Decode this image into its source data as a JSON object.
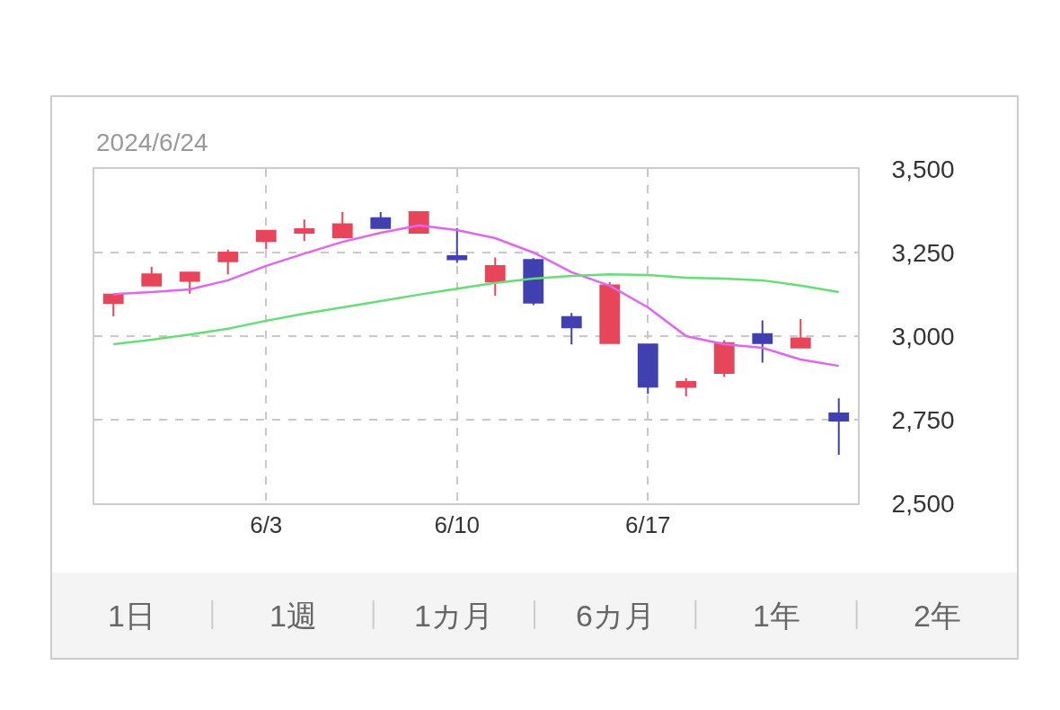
{
  "chart_data": {
    "type": "candlestick",
    "title": "2024/6/24",
    "categories": [
      null,
      null,
      null,
      null,
      "6/3",
      null,
      null,
      null,
      null,
      "6/10",
      null,
      null,
      null,
      null,
      "6/17",
      null,
      null,
      null,
      null,
      null
    ],
    "ohlc": [
      [
        3099,
        3124,
        3059,
        3124
      ],
      [
        3151,
        3207,
        3151,
        3185
      ],
      [
        3165,
        3190,
        3127,
        3190
      ],
      [
        3224,
        3259,
        3185,
        3250
      ],
      [
        3284,
        3315,
        3260,
        3315
      ],
      [
        3309,
        3349,
        3284,
        3320
      ],
      [
        3296,
        3371,
        3296,
        3335
      ],
      [
        3353,
        3371,
        3323,
        3323
      ],
      [
        3309,
        3371,
        3309,
        3371
      ],
      [
        3239,
        3323,
        3219,
        3230
      ],
      [
        3163,
        3235,
        3121,
        3210
      ],
      [
        3228,
        3233,
        3093,
        3100
      ],
      [
        3057,
        3069,
        2975,
        3026
      ],
      [
        2979,
        3161,
        2979,
        3152
      ],
      [
        2975,
        2975,
        2827,
        2849
      ],
      [
        2848,
        2874,
        2820,
        2863
      ],
      [
        2890,
        2988,
        2878,
        2979
      ],
      [
        3006,
        3047,
        2921,
        2979
      ],
      [
        2966,
        3051,
        2966,
        2993
      ],
      [
        2769,
        2814,
        2645,
        2747
      ]
    ],
    "colors": [
      "#e8455a",
      "#e8455a",
      "#e8455a",
      "#e8455a",
      "#e8455a",
      "#e8455a",
      "#e8455a",
      "#4040b0",
      "#e8455a",
      "#4040b0",
      "#e8455a",
      "#4040b0",
      "#4040b0",
      "#e8455a",
      "#4040b0",
      "#e8455a",
      "#e8455a",
      "#4040b0",
      "#e8455a",
      "#4040b0"
    ],
    "series": [
      {
        "type": "line",
        "color": "#e066f0",
        "values": [
          3126,
          3132,
          3140,
          3167,
          3210,
          3247,
          3282,
          3309,
          3331,
          3317,
          3293,
          3250,
          3191,
          3151,
          3086,
          3000,
          2976,
          2965,
          2930,
          2911
        ]
      },
      {
        "type": "line",
        "color": "#66dd77",
        "values": [
          2976,
          2989,
          3005,
          3022,
          3046,
          3067,
          3086,
          3105,
          3124,
          3142,
          3159,
          3172,
          3180,
          3185,
          3183,
          3175,
          3172,
          3167,
          3151,
          3132
        ]
      }
    ],
    "ylim": [
      2500,
      3500
    ],
    "yticks": [
      {
        "value": 2500,
        "label": "2,500"
      },
      {
        "value": 2750,
        "label": "2,750"
      },
      {
        "value": 3000,
        "label": "3,000"
      },
      {
        "value": 3250,
        "label": "3,250"
      },
      {
        "value": 3500,
        "label": "3,500"
      }
    ],
    "grid": true,
    "annotations": [
      "1日",
      "1週",
      "1カ月",
      "6カ月",
      "1年",
      "2年"
    ]
  }
}
